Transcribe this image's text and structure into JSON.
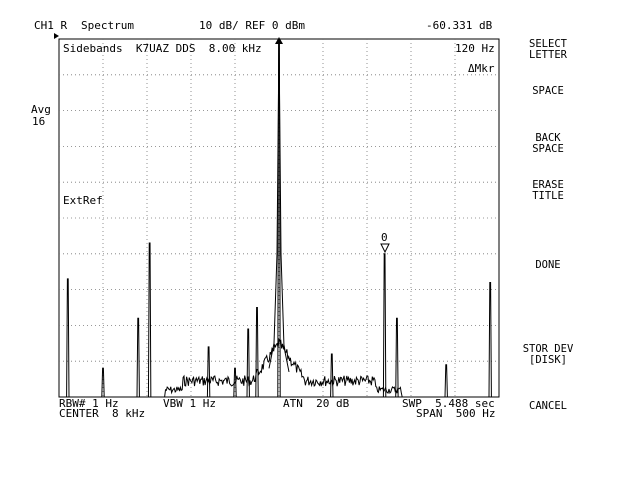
{
  "header": {
    "channel": "CH1 R",
    "mode": "Spectrum",
    "scale": "10 dB/ REF 0 dBm",
    "marker_value": "-60.331 dB"
  },
  "left": {
    "avg_label": "Avg",
    "avg_count": "16"
  },
  "plot": {
    "title": "Sidebands  K7UAZ DDS  8.00 kHz",
    "marker_offset": "120 Hz",
    "delta_marker": "ΔMkr",
    "ext_ref": "ExtRef",
    "marker_number": "0"
  },
  "footer": {
    "rbw": "RBW# 1 Hz",
    "vbw": "VBW 1 Hz",
    "atn": "ATN  20 dB",
    "swp": "SWP  5.488 sec",
    "center": "CENTER  8 kHz",
    "span": "SPAN  500 Hz"
  },
  "softkeys": [
    {
      "label": "SELECT\nLETTER"
    },
    {
      "label": "SPACE"
    },
    {
      "label": "BACK\nSPACE"
    },
    {
      "label": "ERASE\nTITLE"
    },
    {
      "label": "DONE"
    },
    {
      "label": "STOR DEV\n[DISK]"
    },
    {
      "label": "CANCEL"
    }
  ],
  "chart_data": {
    "type": "line",
    "x_unit": "Hz",
    "y_unit": "dBm",
    "xlim": [
      7750,
      8250
    ],
    "ylim": [
      -100,
      0
    ],
    "grid": true,
    "noise_floor_dBm": -94,
    "peaks": [
      {
        "f": 7760,
        "dBm": -67
      },
      {
        "f": 7800,
        "dBm": -92
      },
      {
        "f": 7840,
        "dBm": -78
      },
      {
        "f": 7853,
        "dBm": -57
      },
      {
        "f": 7920,
        "dBm": -86
      },
      {
        "f": 7950,
        "dBm": -92
      },
      {
        "f": 7965,
        "dBm": -81
      },
      {
        "f": 7975,
        "dBm": -75
      },
      {
        "f": 8000,
        "dBm": 0
      },
      {
        "f": 8060,
        "dBm": -88
      },
      {
        "f": 8120,
        "dBm": -60
      },
      {
        "f": 8134,
        "dBm": -78
      },
      {
        "f": 8190,
        "dBm": -91
      },
      {
        "f": 8240,
        "dBm": -68
      }
    ]
  }
}
